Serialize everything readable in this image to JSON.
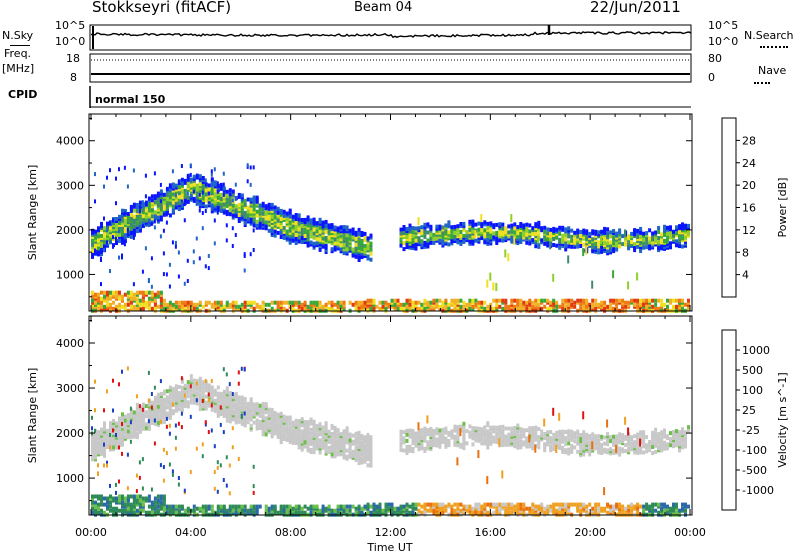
{
  "header": {
    "station": "Stokkseyri (fitACF)",
    "beam": "Beam 04",
    "date": "22/Jun/2011"
  },
  "strip": {
    "nsky_label": "N.Sky",
    "nsky_top": "10^5",
    "nsky_bottom": "10^0",
    "nsearch_top": "10^5",
    "nsearch_bottom": "10^0",
    "nsearch_label": "N.Search",
    "freq_label": "Freq.",
    "freq_unit": "[MHz]",
    "freq_top": "18",
    "freq_bottom": "8",
    "nave_top": "80",
    "nave_bottom": "0",
    "nave_label": "Nave",
    "cpid_label": "CPID",
    "cpid_value": "normal 150"
  },
  "chart_data": [
    {
      "type": "heatmap",
      "panel": "power",
      "ylabel": "Slant Range [km]",
      "xlabel": "Time UT",
      "y_ticks": [
        1000,
        2000,
        3000,
        4000
      ],
      "x_ticks": [
        "00:00",
        "04:00",
        "08:00",
        "12:00",
        "16:00",
        "20:00",
        "00:00"
      ],
      "ylim": [
        180,
        4600
      ],
      "xlim_hours": [
        0,
        24
      ],
      "colorbar": {
        "label": "Power [dB]",
        "ticks": [
          "4",
          "8",
          "12",
          "16",
          "20",
          "24",
          "28"
        ],
        "colors": [
          "#0b14ff",
          "#1f66c6",
          "#3f8a6c",
          "#38a83a",
          "#90d028",
          "#f0e020",
          "#f2b026",
          "#ee7a14",
          "#e23a10",
          "#d00000"
        ]
      },
      "features": [
        {
          "name": "arc",
          "start_hour": 0.0,
          "end_hour": 11.2,
          "range_km": [
            1700,
            3000,
            2000,
            1600
          ]
        },
        {
          "name": "late_band",
          "start_hour": 12.3,
          "end_hour": 24.0,
          "range_km": [
            1900,
            1600,
            2000,
            2200
          ]
        },
        {
          "name": "near_range",
          "start_hour": 0.0,
          "end_hour": 24.0,
          "range_km": [
            300,
            600
          ]
        }
      ]
    },
    {
      "type": "heatmap",
      "panel": "velocity",
      "ylabel": "Slant Range [km]",
      "xlabel": "Time UT",
      "y_ticks": [
        1000,
        2000,
        3000,
        4000
      ],
      "x_ticks": [
        "00:00",
        "04:00",
        "08:00",
        "12:00",
        "16:00",
        "20:00",
        "00:00"
      ],
      "ylim": [
        180,
        4600
      ],
      "xlim_hours": [
        0,
        24
      ],
      "colorbar": {
        "label": "Velocity [m s^-1]",
        "ticks": [
          "1000",
          "500",
          "100",
          "25",
          "-25",
          "-100",
          "-500",
          "-1000"
        ],
        "colors": [
          "#1a3fc4",
          "#2a6aa8",
          "#2e8b57",
          "#6cc04a",
          "#c8c8c8",
          "#f0a020",
          "#e87010",
          "#e01010"
        ]
      }
    }
  ]
}
